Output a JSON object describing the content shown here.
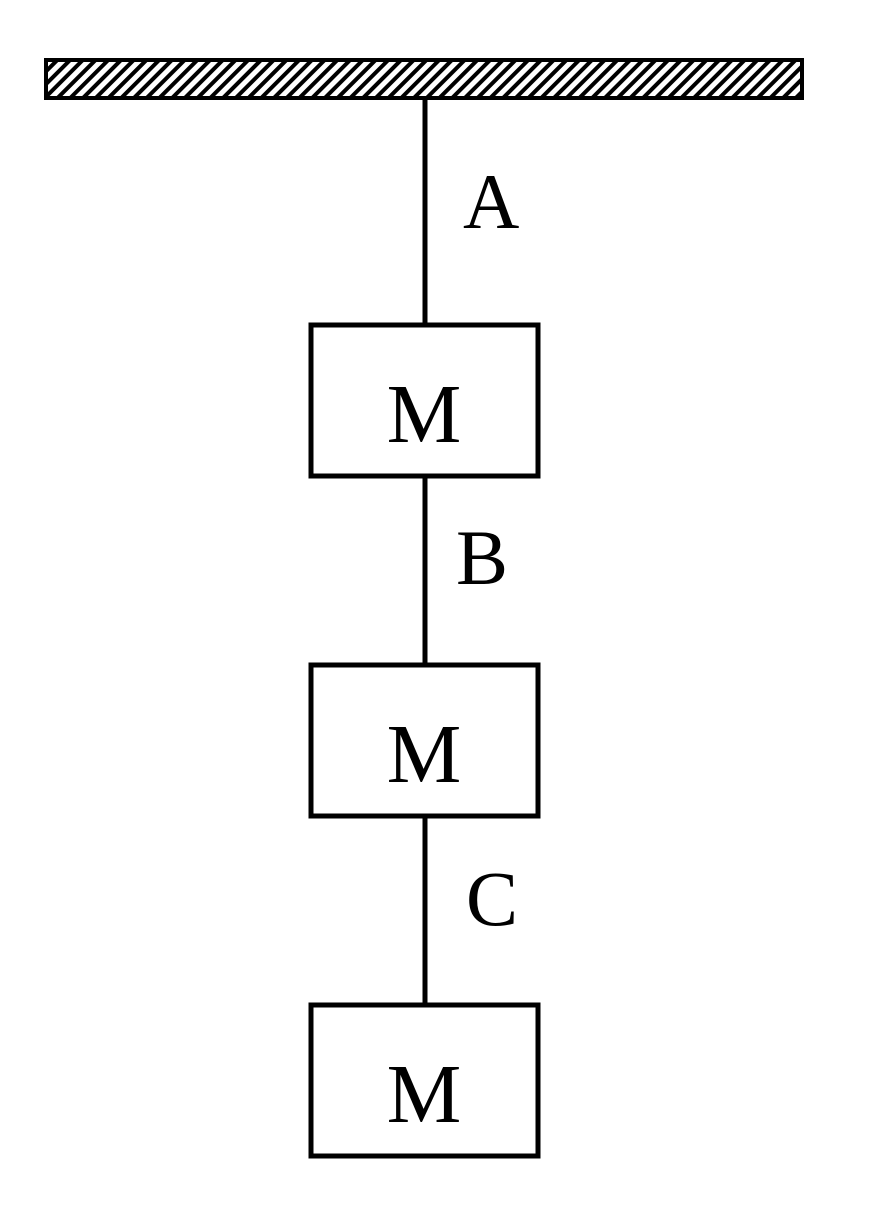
{
  "diagram": {
    "ceiling": {
      "pattern": "diagonal-hatch",
      "color": "#000000"
    },
    "strings": [
      {
        "id": "A",
        "label": "A"
      },
      {
        "id": "B",
        "label": "B"
      },
      {
        "id": "C",
        "label": "C"
      }
    ],
    "blocks": [
      {
        "id": "top",
        "label": "M"
      },
      {
        "id": "middle",
        "label": "M"
      },
      {
        "id": "bottom",
        "label": "M"
      }
    ]
  }
}
